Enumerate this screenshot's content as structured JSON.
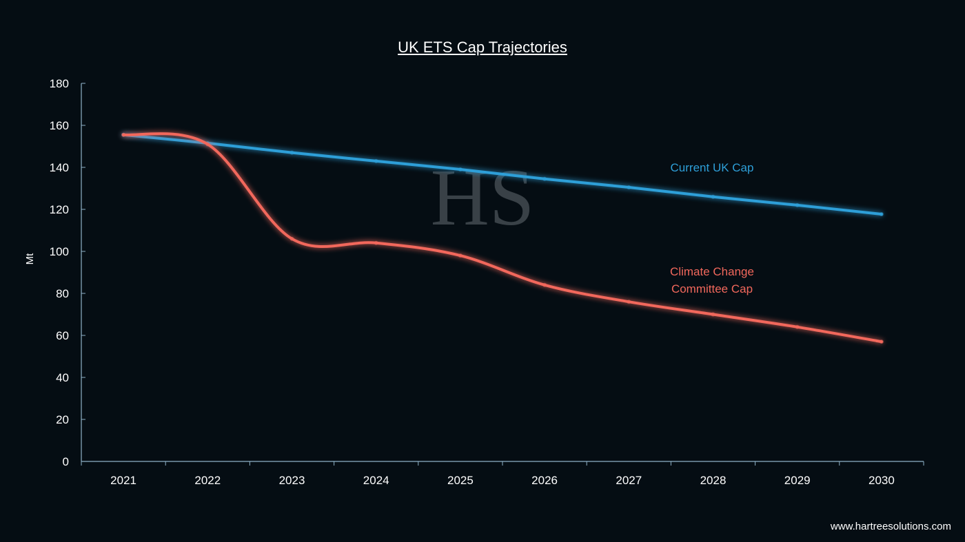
{
  "chart_data": {
    "type": "line",
    "title": "UK ETS Cap Trajectories",
    "xlabel": "",
    "ylabel": "Mt",
    "ylim": [
      0,
      180
    ],
    "yticks": [
      "0",
      "20",
      "40",
      "60",
      "80",
      "100",
      "120",
      "140",
      "160",
      "180"
    ],
    "categories": [
      "2021",
      "2022",
      "2023",
      "2024",
      "2025",
      "2026",
      "2027",
      "2028",
      "2029",
      "2030"
    ],
    "grid": false,
    "series": [
      {
        "name": "Current UK Cap",
        "color": "#2e9fd8",
        "values": [
          155.5,
          151.5,
          147,
          143,
          139,
          134.5,
          130.5,
          126,
          122,
          117.7
        ]
      },
      {
        "name": "Climate Change Committee Cap",
        "name_lines": [
          "Climate Change",
          "Committee Cap"
        ],
        "color": "#f2685c",
        "values": [
          155.5,
          151,
          106,
          104,
          98,
          84,
          76,
          70,
          64,
          57
        ]
      }
    ]
  },
  "watermark": "HS",
  "footer": "www.hartreesolutions.com"
}
